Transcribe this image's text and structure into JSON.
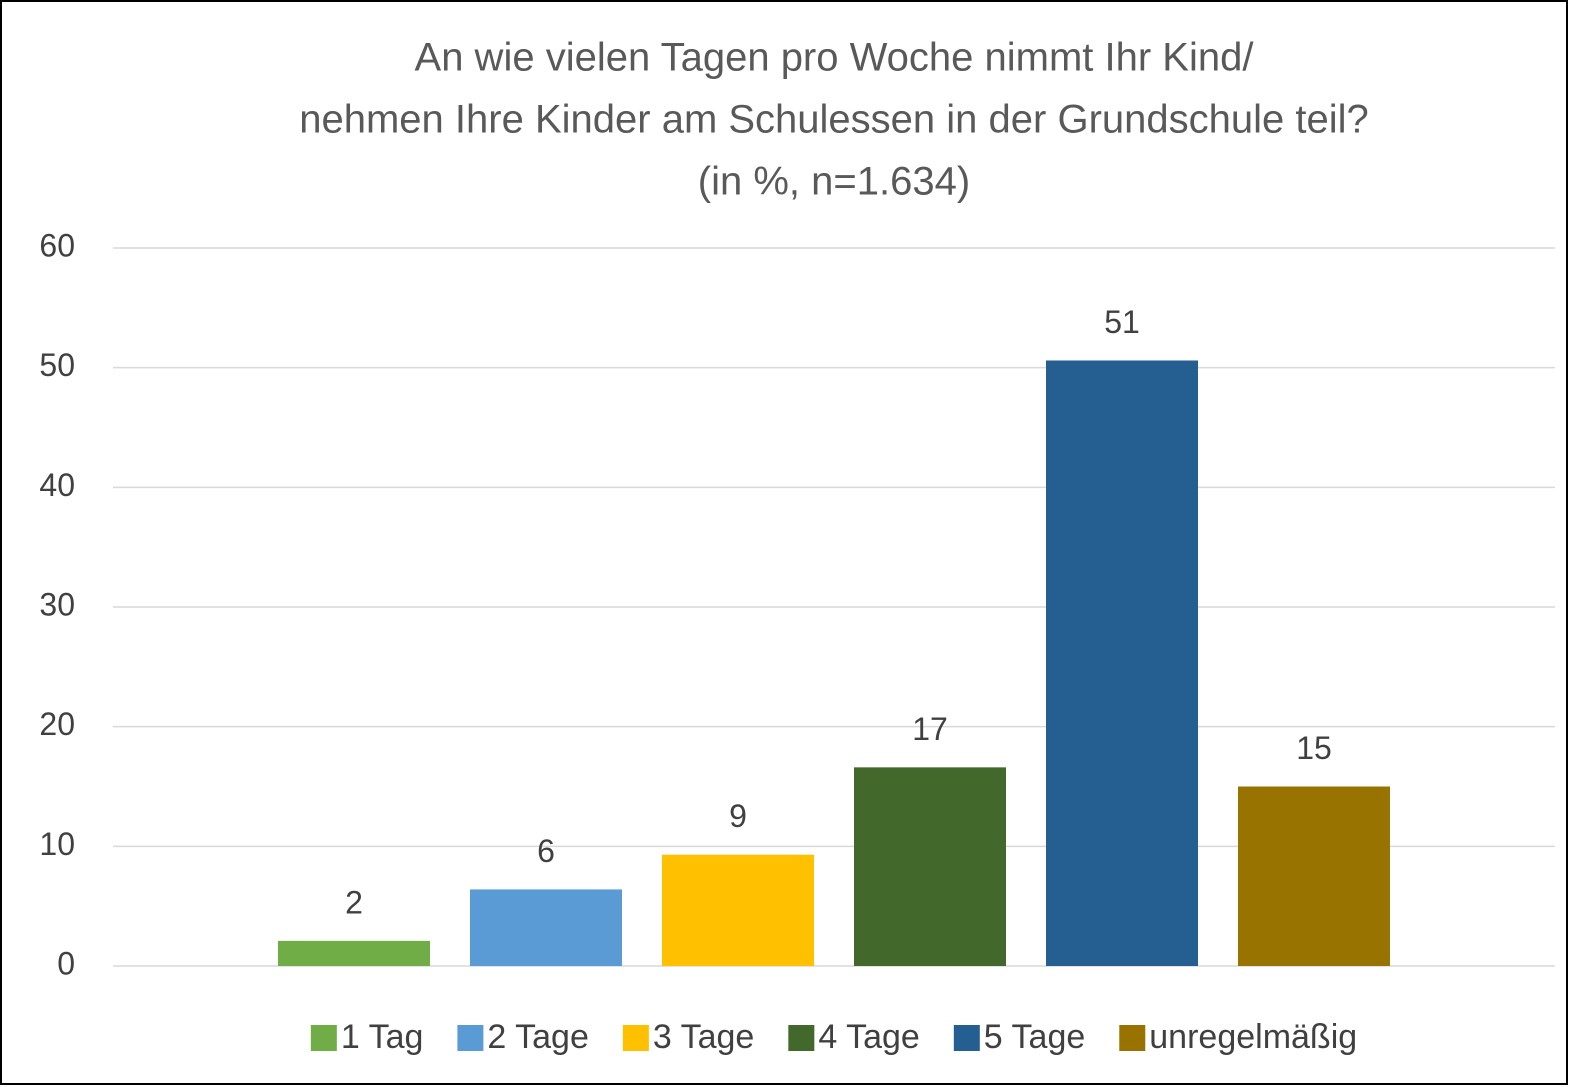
{
  "chart_data": {
    "type": "bar",
    "title": [
      "An wie vielen Tagen pro Woche nimmt Ihr Kind/",
      "nehmen Ihre Kinder am Schulessen in der Grundschule teil?",
      "(in %, n=1.634)"
    ],
    "categories": [
      null
    ],
    "series": [
      {
        "name": "1 Tag",
        "color": "#70ad47",
        "values": [
          2.1
        ],
        "value_labels": [
          "2"
        ]
      },
      {
        "name": "2 Tage",
        "color": "#5b9bd5",
        "values": [
          6.4
        ],
        "value_labels": [
          "6"
        ]
      },
      {
        "name": "3 Tage",
        "color": "#ffc000",
        "values": [
          9.3
        ],
        "value_labels": [
          "9"
        ]
      },
      {
        "name": "4 Tage",
        "color": "#43682b",
        "values": [
          16.6
        ],
        "value_labels": [
          "17"
        ]
      },
      {
        "name": "5 Tage",
        "color": "#255e91",
        "values": [
          50.6
        ],
        "value_labels": [
          "51"
        ]
      },
      {
        "name": "unregelmäßig",
        "color": "#997300",
        "values": [
          15.0
        ],
        "value_labels": [
          "15"
        ]
      }
    ],
    "ylim": [
      0,
      60
    ],
    "yticks": [
      0,
      10,
      20,
      30,
      40,
      50,
      60
    ],
    "grid": true,
    "legend": "bottom"
  }
}
